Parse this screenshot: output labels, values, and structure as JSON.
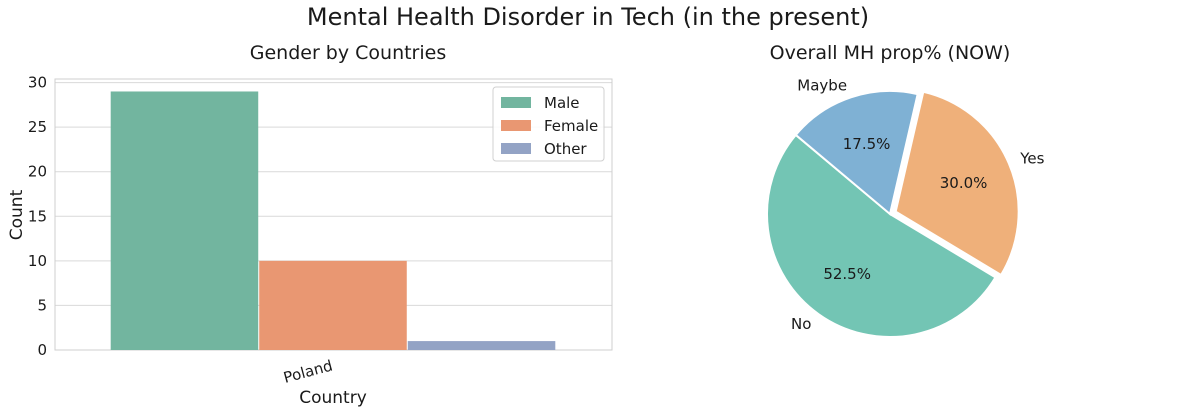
{
  "suptitle": "Mental Health Disorder in Tech (in the present)",
  "chart_data": [
    {
      "type": "bar",
      "title": "Gender by Countries",
      "xlabel": "Country",
      "ylabel": "Count",
      "categories": [
        "Poland"
      ],
      "series": [
        {
          "name": "Male",
          "values": [
            29
          ],
          "color": "#72b59f"
        },
        {
          "name": "Female",
          "values": [
            10
          ],
          "color": "#e99772"
        },
        {
          "name": "Other",
          "values": [
            1
          ],
          "color": "#93a3c5"
        }
      ],
      "ylim": [
        0,
        30.4
      ],
      "yticks": [
        "0",
        "5",
        "10",
        "15",
        "20",
        "25",
        "30"
      ],
      "grid": true,
      "legend_position": "top-right"
    },
    {
      "type": "pie",
      "title": "Overall MH prop% (NOW)",
      "slices": [
        {
          "label": "No",
          "value": 52.5,
          "pct_label": "52.5%",
          "color": "#73c5b4"
        },
        {
          "label": "Yes",
          "value": 30.0,
          "pct_label": "30.0%",
          "color": "#efb07a",
          "explode": true
        },
        {
          "label": "Maybe",
          "value": 17.5,
          "pct_label": "17.5%",
          "color": "#7fb1d4"
        }
      ]
    }
  ]
}
